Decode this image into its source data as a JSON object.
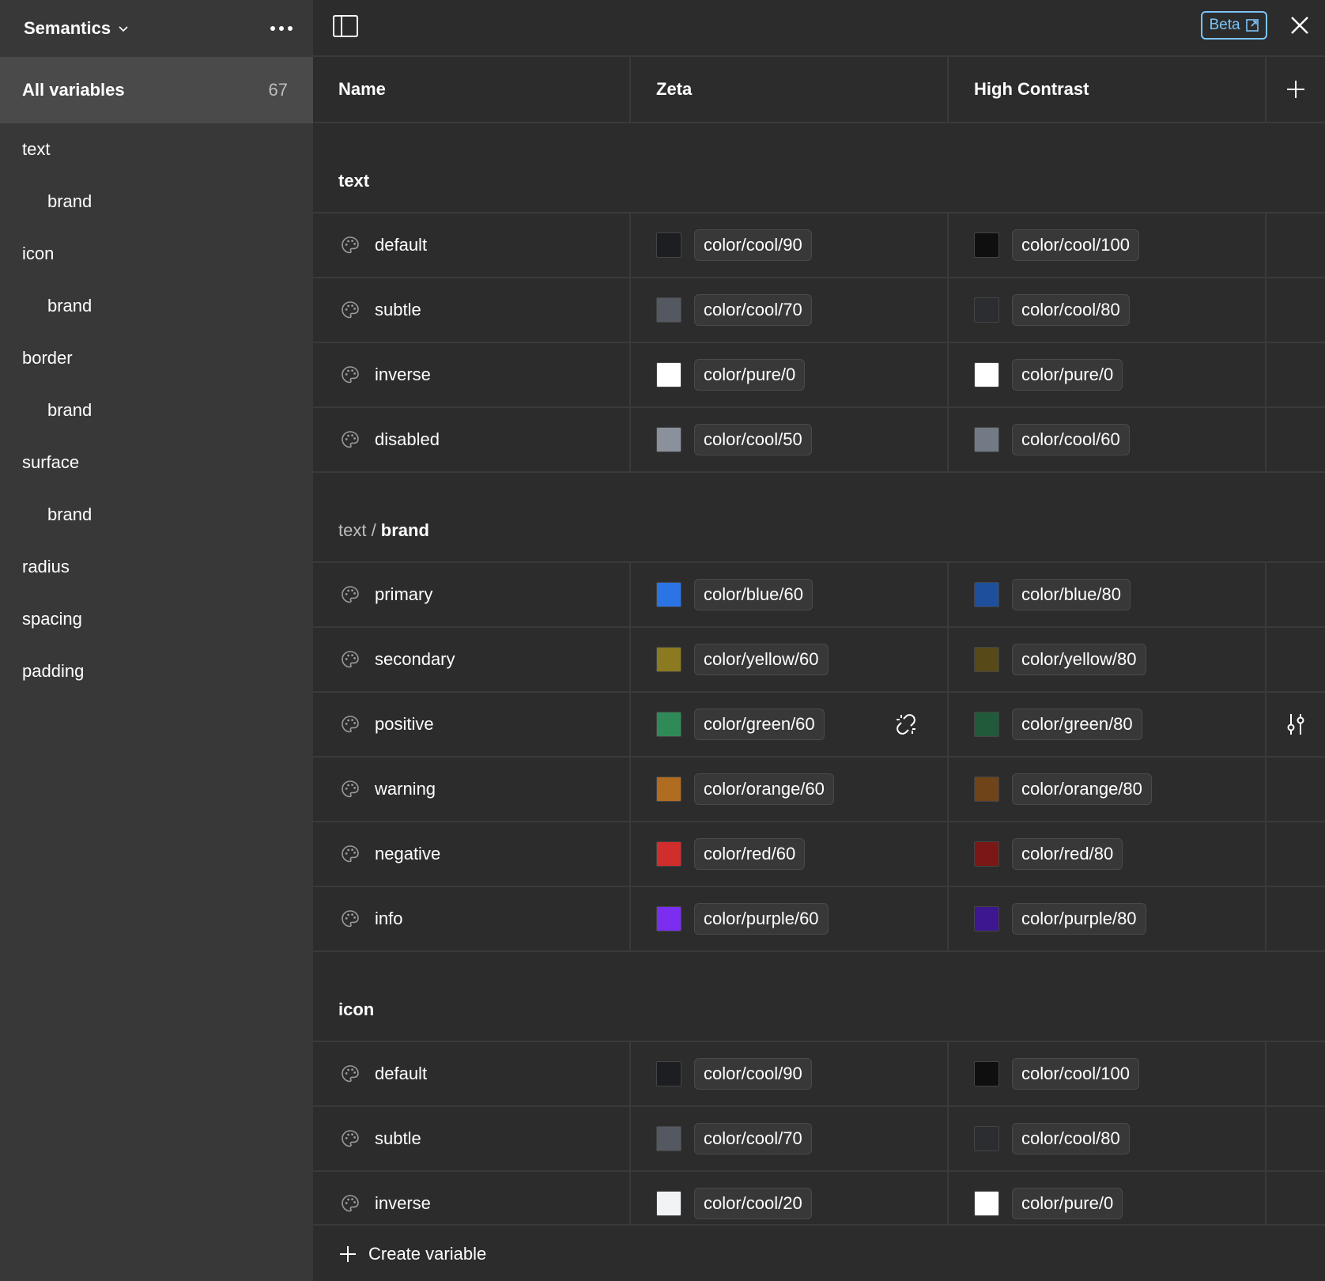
{
  "sidebar": {
    "collection": "Semantics",
    "all_label": "All variables",
    "all_count": "67",
    "groups": [
      {
        "label": "text",
        "sub": false
      },
      {
        "label": "brand",
        "sub": true
      },
      {
        "label": "icon",
        "sub": false
      },
      {
        "label": "brand",
        "sub": true
      },
      {
        "label": "border",
        "sub": false
      },
      {
        "label": "brand",
        "sub": true
      },
      {
        "label": "surface",
        "sub": false
      },
      {
        "label": "brand",
        "sub": true
      },
      {
        "label": "radius",
        "sub": false
      },
      {
        "label": "spacing",
        "sub": false
      },
      {
        "label": "padding",
        "sub": false
      }
    ]
  },
  "topbar": {
    "beta_label": "Beta"
  },
  "columns": {
    "name": "Name",
    "mode1": "Zeta",
    "mode2": "High Contrast"
  },
  "sections": [
    {
      "prefix": "",
      "title": "text",
      "rows": [
        {
          "name": "default",
          "zeta": {
            "label": "color/cool/90",
            "color": "#1d1e22"
          },
          "hc": {
            "label": "color/cool/100",
            "color": "#0f0f10"
          }
        },
        {
          "name": "subtle",
          "zeta": {
            "label": "color/cool/70",
            "color": "#545861"
          },
          "hc": {
            "label": "color/cool/80",
            "color": "#2b2d31"
          }
        },
        {
          "name": "inverse",
          "zeta": {
            "label": "color/pure/0",
            "color": "#ffffff"
          },
          "hc": {
            "label": "color/pure/0",
            "color": "#ffffff"
          }
        },
        {
          "name": "disabled",
          "zeta": {
            "label": "color/cool/50",
            "color": "#8a919c"
          },
          "hc": {
            "label": "color/cool/60",
            "color": "#737a86"
          }
        }
      ]
    },
    {
      "prefix": "text / ",
      "title": "brand",
      "rows": [
        {
          "name": "primary",
          "zeta": {
            "label": "color/blue/60",
            "color": "#2a74e6"
          },
          "hc": {
            "label": "color/blue/80",
            "color": "#1d4f9c"
          }
        },
        {
          "name": "secondary",
          "zeta": {
            "label": "color/yellow/60",
            "color": "#8c7a20"
          },
          "hc": {
            "label": "color/yellow/80",
            "color": "#574a18"
          }
        },
        {
          "name": "positive",
          "zeta": {
            "label": "color/green/60",
            "color": "#308a58"
          },
          "hc": {
            "label": "color/green/80",
            "color": "#215a3a"
          }
        },
        {
          "name": "warning",
          "zeta": {
            "label": "color/orange/60",
            "color": "#b06d22"
          },
          "hc": {
            "label": "color/orange/80",
            "color": "#6e4418"
          }
        },
        {
          "name": "negative",
          "zeta": {
            "label": "color/red/60",
            "color": "#d12d2d"
          },
          "hc": {
            "label": "color/red/80",
            "color": "#7a1818"
          }
        },
        {
          "name": "info",
          "zeta": {
            "label": "color/purple/60",
            "color": "#7b2ef0"
          },
          "hc": {
            "label": "color/purple/80",
            "color": "#3c178f"
          }
        }
      ]
    },
    {
      "prefix": "",
      "title": "icon",
      "rows": [
        {
          "name": "default",
          "zeta": {
            "label": "color/cool/90",
            "color": "#1d1e22"
          },
          "hc": {
            "label": "color/cool/100",
            "color": "#0f0f10"
          }
        },
        {
          "name": "subtle",
          "zeta": {
            "label": "color/cool/70",
            "color": "#545861"
          },
          "hc": {
            "label": "color/cool/80",
            "color": "#2b2d31"
          }
        },
        {
          "name": "inverse",
          "zeta": {
            "label": "color/cool/20",
            "color": "#f2f3f5"
          },
          "hc": {
            "label": "color/pure/0",
            "color": "#ffffff"
          }
        }
      ]
    }
  ],
  "hover_row": "positive",
  "footer": {
    "create_label": "Create variable"
  },
  "icons": {
    "row_icon": "palette-icon",
    "detach": "detach-link-icon",
    "row_action": "sliders-icon"
  }
}
